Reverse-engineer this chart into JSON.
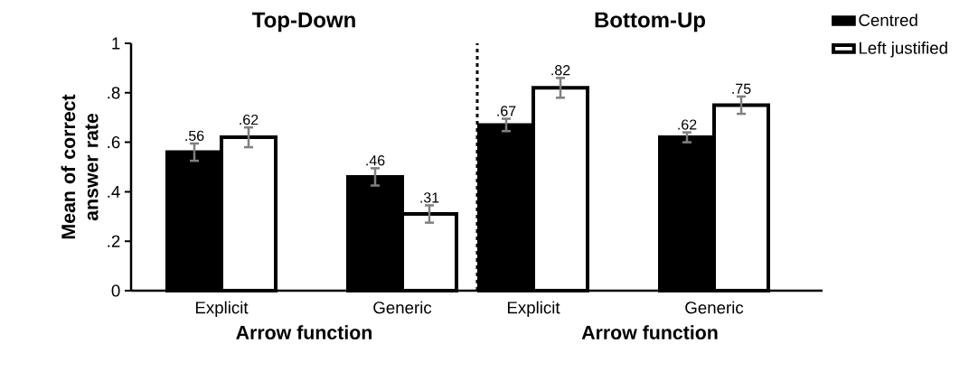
{
  "chart_data": [
    {
      "type": "bar",
      "title": "Top-Down",
      "xlabel": "Arrow function",
      "ylabel": "Mean of correct answer rate",
      "categories": [
        "Explicit",
        "Generic"
      ],
      "series": [
        {
          "color": "#000000",
          "values": [
            0.56,
            0.46
          ],
          "errors": [
            0.035,
            0.035
          ],
          "value_labels": [
            ".56",
            ".46"
          ]
        },
        {
          "color": "#ffffff",
          "values": [
            0.62,
            0.31
          ],
          "errors": [
            0.04,
            0.035
          ],
          "value_labels": [
            ".62",
            ".31"
          ]
        }
      ],
      "ylim": [
        0,
        1
      ],
      "yticks": [
        0,
        {
          "value": 0.2,
          "label": ".2"
        },
        {
          "value": 0.4,
          "label": ".4"
        },
        {
          "value": 0.6,
          "label": ".6"
        },
        {
          "value": 0.8,
          "label": ".8"
        },
        1
      ]
    },
    {
      "type": "bar",
      "title": "Bottom-Up",
      "xlabel": "Arrow function",
      "categories": [
        "Explicit",
        "Generic"
      ],
      "series": [
        {
          "name": "Centred",
          "color": "#000000",
          "values": [
            0.67,
            0.62
          ],
          "errors": [
            0.025,
            0.02
          ],
          "value_labels": [
            ".67",
            ".62"
          ]
        },
        {
          "name": "Left justified",
          "color": "#ffffff",
          "values": [
            0.82,
            0.75
          ],
          "errors": [
            0.04,
            0.035
          ],
          "value_labels": [
            ".82",
            ".75"
          ]
        }
      ],
      "ylim": [
        0,
        1
      ],
      "tick_labels": "x",
      "legend": "right"
    }
  ]
}
